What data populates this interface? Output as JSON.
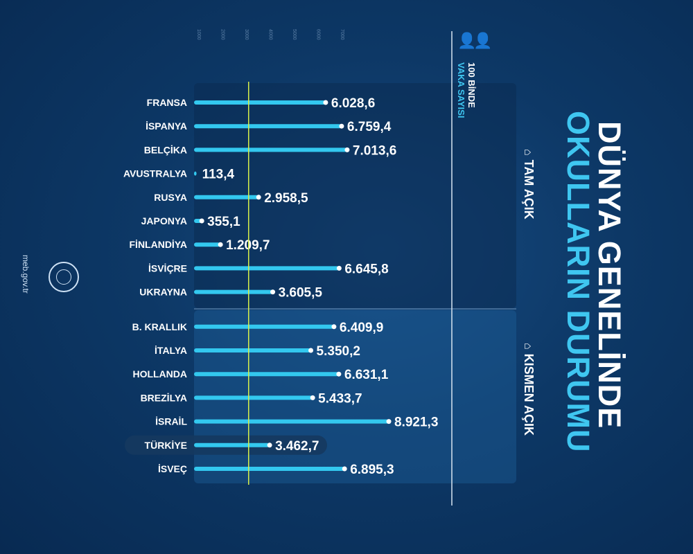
{
  "title_line1": "DÜNYA GENELİNDE",
  "title_line2": "OKULLARIN DURUMU",
  "unit_line1": "100 BİNDE",
  "unit_line2": "VAKA SAYISI",
  "people_icon": "people-icon",
  "school_icon": "school-icon",
  "site": "meb.gov.tr",
  "sections": [
    {
      "label": "TAM AÇIK",
      "count": 9
    },
    {
      "label": "KISMEN AÇIK",
      "count": 7
    }
  ],
  "colors": {
    "bar": "#33c8ef",
    "accent": "#3fc6f0",
    "reference_line": "#d8f04a",
    "highlight": "#15385f"
  },
  "chart_data": {
    "type": "bar",
    "orientation": "horizontal",
    "title": "DÜNYA GENELİNDE OKULLARIN DURUMU",
    "xlabel": "100 BİNDE VAKA SAYISI",
    "xlim": [
      0,
      10000
    ],
    "ticks": [
      "1000",
      "2000",
      "3000",
      "4000",
      "5000",
      "6000",
      "7000"
    ],
    "reference_value": 2500,
    "highlight": "TÜRKİYE",
    "categories": [
      "FRANSA",
      "İSPANYA",
      "BELÇİKA",
      "AVUSTRALYA",
      "RUSYA",
      "JAPONYA",
      "FİNLANDİYA",
      "İSVİÇRE",
      "UKRAYNA",
      "B. KRALLIK",
      "İTALYA",
      "HOLLANDA",
      "BREZİLYA",
      "İSRAİL",
      "TÜRKİYE",
      "İSVEÇ"
    ],
    "values": [
      6028.6,
      6759.4,
      7013.6,
      113.4,
      2958.5,
      355.1,
      1209.7,
      6645.8,
      3605.5,
      6409.9,
      5350.2,
      6631.1,
      5433.7,
      8921.3,
      3462.7,
      6895.3
    ],
    "labels": [
      "6.028,6",
      "6.759,4",
      "7.013,6",
      "113,4",
      "2.958,5",
      "355,1",
      "1.209,7",
      "6.645,8",
      "3.605,5",
      "6.409,9",
      "5.350,2",
      "6.631,1",
      "5.433,7",
      "8.921,3",
      "3.462,7",
      "6.895,3"
    ]
  }
}
